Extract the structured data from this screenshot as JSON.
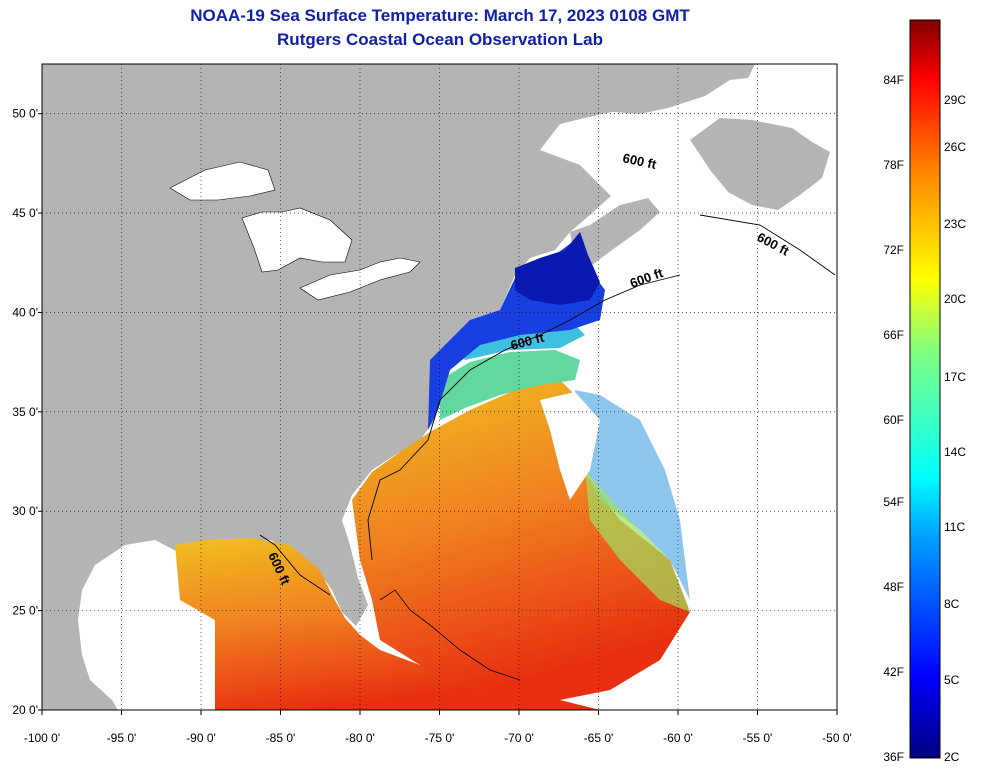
{
  "title": "NOAA-19 Sea Surface Temperature:  March 17, 2023 0108 GMT",
  "subtitle": "Rutgers Coastal Ocean Observation Lab",
  "map": {
    "lon_range": [
      -100,
      -50
    ],
    "lat_range": [
      20,
      52.5
    ],
    "lat_ticks": [
      "50 0'",
      "45 0'",
      "40 0'",
      "35 0'",
      "30 0'",
      "25 0'",
      "20 0'"
    ],
    "lon_ticks": [
      "-100 0'",
      "-95 0'",
      "-90 0'",
      "-85 0'",
      "-80 0'",
      "-75 0'",
      "-70 0'",
      "-65 0'",
      "-60 0'",
      "-55 0'",
      "-50 0'"
    ],
    "contour_label": "600 ft",
    "grid": true,
    "colors": {
      "land": "#b4b4b4",
      "water_no_data": "#ffffff",
      "title": "#1020a8"
    }
  },
  "colorbar": {
    "fahrenheit": [
      "84F",
      "78F",
      "72F",
      "66F",
      "60F",
      "54F",
      "48F",
      "42F",
      "36F"
    ],
    "celsius": [
      "29C",
      "26C",
      "23C",
      "20C",
      "17C",
      "14C",
      "11C",
      "8C",
      "5C",
      "2C"
    ]
  }
}
